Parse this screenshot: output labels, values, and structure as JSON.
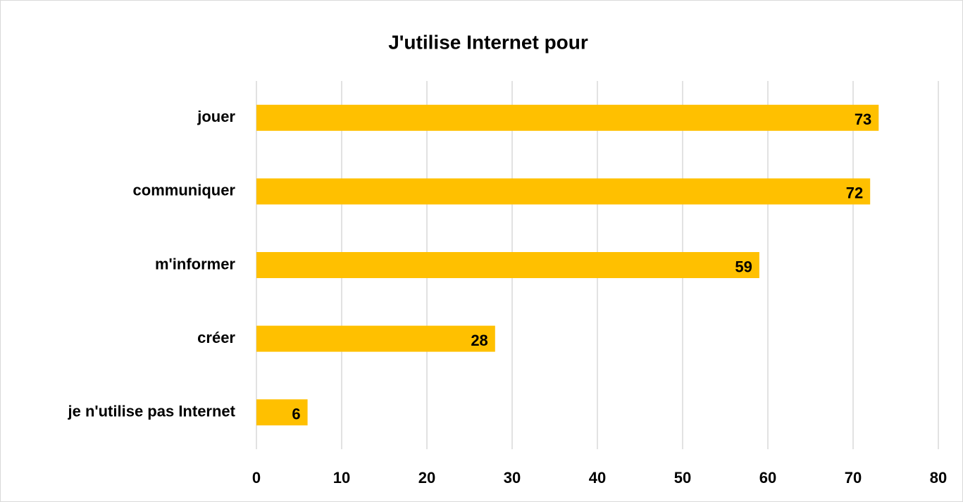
{
  "chart_data": {
    "type": "barh",
    "title": "J'utilise Internet pour",
    "categories": [
      "jouer",
      "communiquer",
      "m'informer",
      "créer",
      "je n'utilise pas Internet"
    ],
    "values": [
      73,
      72,
      59,
      28,
      6
    ],
    "color": "#FFC000",
    "xlim": [
      0,
      80
    ],
    "xticks": [
      0,
      10,
      20,
      30,
      40,
      50,
      60,
      70,
      80
    ],
    "grid": true
  }
}
